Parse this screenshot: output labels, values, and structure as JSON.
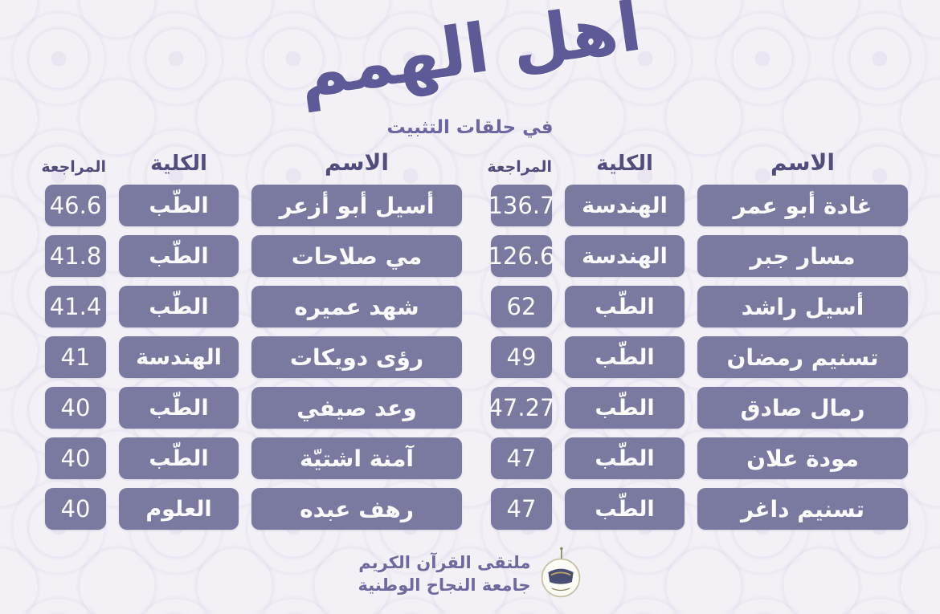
{
  "title": {
    "main": "أهل الهمم",
    "subtitle": "في حلقات التثبيت"
  },
  "columns": {
    "name": "الاسم",
    "college": "الكلية",
    "review": "المراجعة"
  },
  "tables": {
    "right": {
      "rows": [
        {
          "name": "غادة أبو عمر",
          "college": "الهندسة",
          "review": "136.7"
        },
        {
          "name": "مسار جبر",
          "college": "الهندسة",
          "review": "126.6"
        },
        {
          "name": "أسيل راشد",
          "college": "الطّب",
          "review": "62"
        },
        {
          "name": "تسنيم رمضان",
          "college": "الطّب",
          "review": "49"
        },
        {
          "name": "رمال صادق",
          "college": "الطّب",
          "review": "47.27"
        },
        {
          "name": "مودة علان",
          "college": "الطّب",
          "review": "47"
        },
        {
          "name": "تسنيم داغر",
          "college": "الطّب",
          "review": "47"
        }
      ]
    },
    "left": {
      "rows": [
        {
          "name": "أسيل أبو أزعر",
          "college": "الطّب",
          "review": "46.6"
        },
        {
          "name": "مي صلاحات",
          "college": "الطّب",
          "review": "41.8"
        },
        {
          "name": "شهد عميره",
          "college": "الطّب",
          "review": "41.4"
        },
        {
          "name": "رؤى دويكات",
          "college": "الهندسة",
          "review": "41"
        },
        {
          "name": "وعد صيفي",
          "college": "الطّب",
          "review": "40"
        },
        {
          "name": "آمنة اشتيّة",
          "college": "الطّب",
          "review": "40"
        },
        {
          "name": "رهف عبده",
          "college": "العلوم",
          "review": "40"
        }
      ]
    }
  },
  "footer": {
    "line1": "ملتقى القرآن الكريم",
    "line2": "جامعة النجاح الوطنية"
  },
  "icons": {
    "logo": "quran-forum-logo"
  },
  "colors": {
    "box_purple": "#7a79a0",
    "heading_text": "#514d7d",
    "title_text": "#5d5a97",
    "footer_text": "#6e699e",
    "background": "#f3f1f6",
    "cell_text": "#fbfafd"
  }
}
